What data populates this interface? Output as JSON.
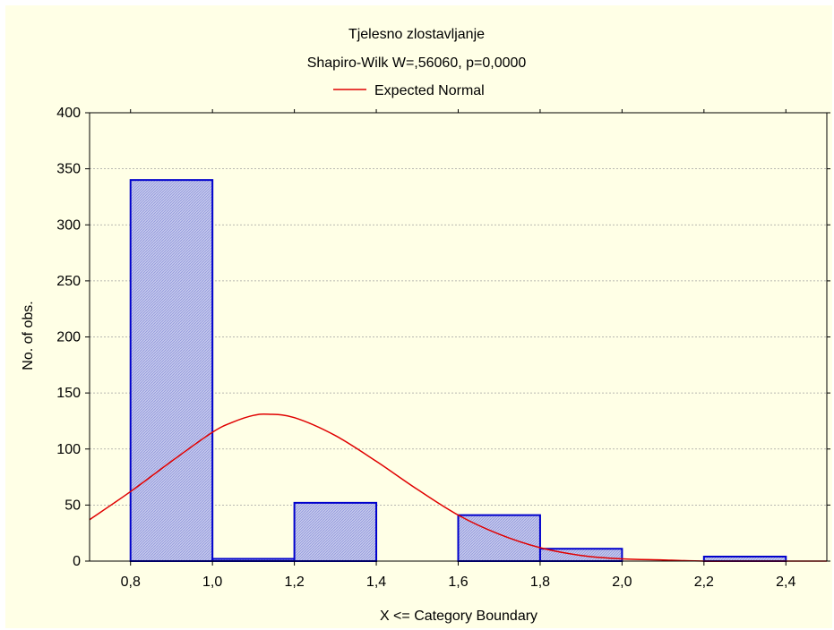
{
  "chart_data": {
    "type": "bar",
    "title": "Tjelesno zlostavljanje",
    "subtitle": "Shapiro-Wilk W=,56060, p=0,0000",
    "legend": {
      "placement": "top-center",
      "entries": [
        {
          "name": "Expected Normal",
          "color": "#e00000",
          "kind": "line"
        }
      ]
    },
    "xlabel": "X <= Category Boundary",
    "ylabel": "No. of obs.",
    "xlim": [
      0.7,
      2.5
    ],
    "ylim": [
      0,
      400
    ],
    "x_ticks": [
      0.8,
      1.0,
      1.2,
      1.4,
      1.6,
      1.8,
      2.0,
      2.2,
      2.4
    ],
    "x_tick_labels": [
      "0,8",
      "1,0",
      "1,2",
      "1,4",
      "1,6",
      "1,8",
      "2,0",
      "2,2",
      "2,4"
    ],
    "y_ticks": [
      0,
      50,
      100,
      150,
      200,
      250,
      300,
      350,
      400
    ],
    "y_tick_labels": [
      "0",
      "50",
      "100",
      "150",
      "200",
      "250",
      "300",
      "350",
      "400"
    ],
    "grid": true,
    "bins": [
      {
        "from": 0.8,
        "to": 1.0,
        "count": 340
      },
      {
        "from": 1.0,
        "to": 1.2,
        "count": 2
      },
      {
        "from": 1.2,
        "to": 1.4,
        "count": 52
      },
      {
        "from": 1.4,
        "to": 1.6,
        "count": 0
      },
      {
        "from": 1.6,
        "to": 1.8,
        "count": 41
      },
      {
        "from": 1.8,
        "to": 2.0,
        "count": 11
      },
      {
        "from": 2.0,
        "to": 2.2,
        "count": 0
      },
      {
        "from": 2.2,
        "to": 2.4,
        "count": 4
      }
    ],
    "expected_normal": {
      "x": [
        0.7,
        0.8,
        0.9,
        1.0,
        1.05,
        1.1,
        1.137,
        1.2,
        1.3,
        1.4,
        1.5,
        1.6,
        1.7,
        1.8,
        1.9,
        2.0,
        2.1,
        2.2,
        2.3,
        2.4,
        2.5
      ],
      "y": [
        37,
        62,
        89,
        115,
        124,
        130,
        131,
        128,
        112,
        89,
        64,
        41,
        24,
        12,
        5,
        2,
        1,
        0,
        0,
        0,
        0
      ]
    },
    "colors": {
      "bar_fill": "#c4c8ec",
      "bar_edge": "#0000cc",
      "curve": "#e00000",
      "background": "#ffffe6",
      "grid": "#a0a0a0"
    }
  }
}
